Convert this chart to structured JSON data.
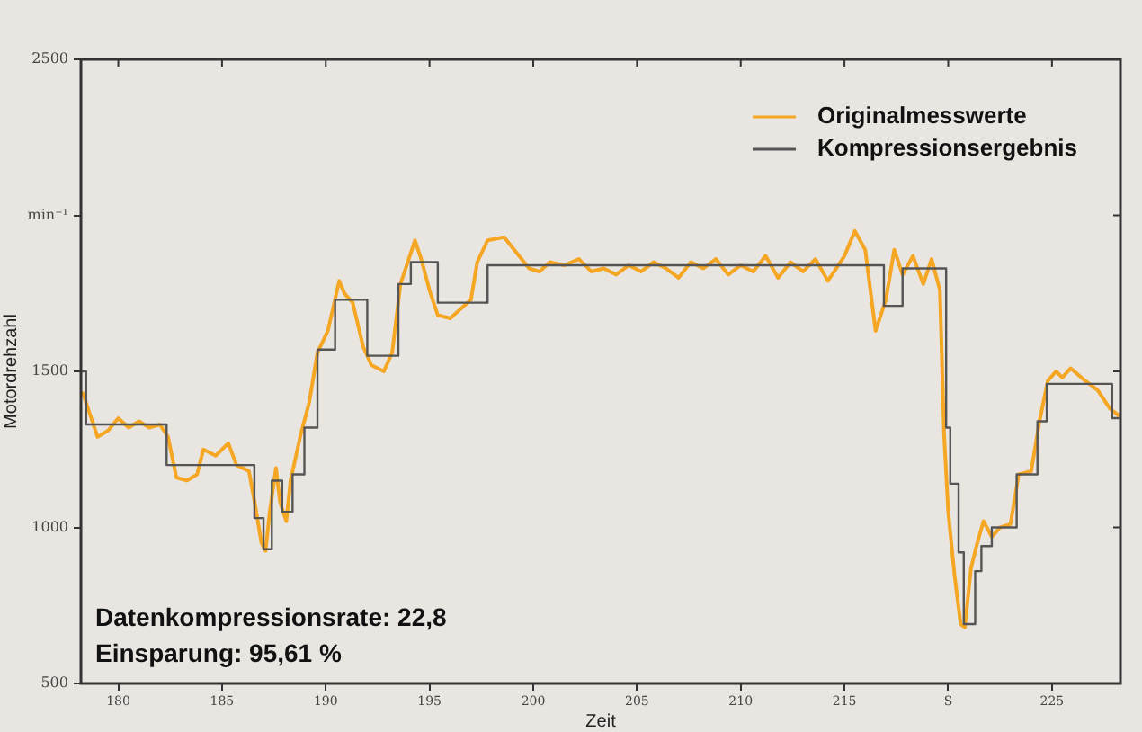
{
  "chart_data": {
    "type": "line",
    "xlabel": "Zeit",
    "ylabel": "Motordrehzahl",
    "xlim": [
      178.2,
      228.3
    ],
    "xticks": [
      180,
      185,
      190,
      195,
      200,
      205,
      210,
      215,
      {
        "value": 220,
        "label": "S"
      },
      225
    ],
    "ylim": [
      500,
      2500
    ],
    "yticks": [
      500,
      1000,
      1500,
      {
        "value": 2000,
        "label": "min⁻¹"
      },
      2500
    ],
    "grid": false,
    "legend": "top right",
    "marker": "none",
    "annotations": [
      "Datenkompressionsrate: 22,8",
      "Einsparung: 95,61 %"
    ],
    "series": [
      {
        "name": "Originalmesswerte",
        "color": "#f5a623",
        "x": [
          178.3,
          179.0,
          179.5,
          180.0,
          180.5,
          181.0,
          181.5,
          182.0,
          182.4,
          182.8,
          183.3,
          183.8,
          184.1,
          184.7,
          185.3,
          185.7,
          186.3,
          186.6,
          186.9,
          187.1,
          187.3,
          187.6,
          187.8,
          188.1,
          188.3,
          188.8,
          189.2,
          189.6,
          190.1,
          190.65,
          190.9,
          191.3,
          191.8,
          192.2,
          192.8,
          193.2,
          193.6,
          194.3,
          194.6,
          195.0,
          195.4,
          196.0,
          196.5,
          197.0,
          197.3,
          197.8,
          198.6,
          199.2,
          199.8,
          200.3,
          200.8,
          201.5,
          202.2,
          202.8,
          203.4,
          204.0,
          204.6,
          205.2,
          205.8,
          206.4,
          207.0,
          207.6,
          208.2,
          208.8,
          209.4,
          210.0,
          210.6,
          211.2,
          211.8,
          212.4,
          213.0,
          213.6,
          214.2,
          214.7,
          215.0,
          215.5,
          216.0,
          216.5,
          217.0,
          217.4,
          217.8,
          218.3,
          218.8,
          219.2,
          219.6,
          219.8,
          220.0,
          220.3,
          220.6,
          220.8,
          221.1,
          221.4,
          221.7,
          222.1,
          222.5,
          223.0,
          223.4,
          224.0,
          224.4,
          224.8,
          225.2,
          225.5,
          225.9,
          226.6,
          227.2,
          227.8,
          228.2
        ],
        "values": [
          1430,
          1290,
          1310,
          1350,
          1320,
          1340,
          1320,
          1330,
          1290,
          1160,
          1150,
          1170,
          1250,
          1230,
          1270,
          1200,
          1180,
          1070,
          950,
          925,
          1050,
          1190,
          1080,
          1020,
          1150,
          1300,
          1400,
          1560,
          1630,
          1790,
          1750,
          1720,
          1580,
          1520,
          1500,
          1560,
          1780,
          1920,
          1860,
          1760,
          1680,
          1670,
          1700,
          1730,
          1850,
          1920,
          1930,
          1880,
          1830,
          1820,
          1850,
          1840,
          1860,
          1820,
          1830,
          1810,
          1840,
          1820,
          1850,
          1830,
          1800,
          1850,
          1830,
          1860,
          1810,
          1840,
          1820,
          1870,
          1800,
          1850,
          1820,
          1860,
          1790,
          1840,
          1870,
          1950,
          1890,
          1630,
          1730,
          1890,
          1810,
          1870,
          1780,
          1860,
          1760,
          1300,
          1050,
          850,
          690,
          680,
          870,
          950,
          1020,
          970,
          1000,
          1010,
          1170,
          1180,
          1340,
          1470,
          1500,
          1480,
          1510,
          1470,
          1440,
          1380,
          1360
        ]
      },
      {
        "name": "Kompressionsergebnis",
        "color": "#555555",
        "type": "step",
        "x": [
          178.27,
          178.45,
          182.33,
          186.56,
          187.0,
          187.4,
          187.9,
          188.4,
          188.97,
          189.6,
          190.45,
          192.0,
          193.5,
          194.1,
          195.4,
          197.8,
          216.9,
          217.8,
          219.9,
          220.1,
          220.5,
          220.75,
          221.3,
          221.6,
          222.1,
          223.3,
          224.3,
          224.75,
          227.9,
          228.2
        ],
        "values": [
          1500,
          1330,
          1200,
          1030,
          930,
          1150,
          1050,
          1170,
          1320,
          1570,
          1730,
          1550,
          1780,
          1850,
          1720,
          1840,
          1710,
          1830,
          1320,
          1140,
          920,
          690,
          860,
          940,
          1000,
          1170,
          1340,
          1460,
          1350,
          1350
        ]
      }
    ]
  }
}
